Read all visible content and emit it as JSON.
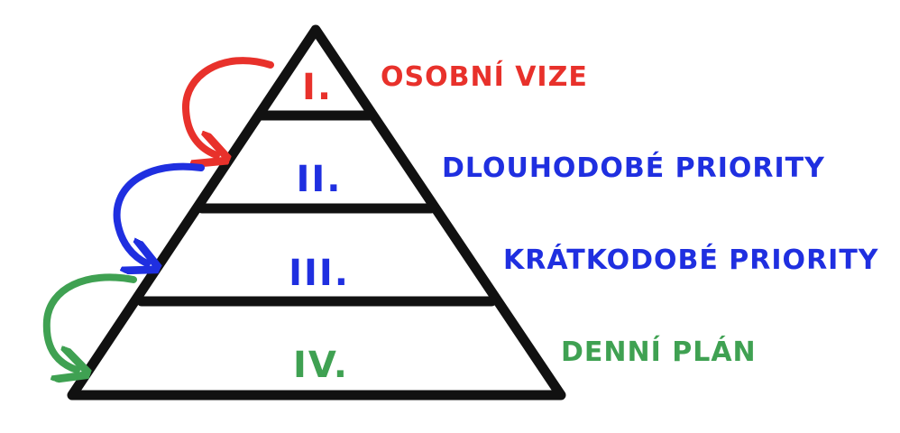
{
  "colors": {
    "outline": "#111111",
    "red": "#e8312b",
    "blue": "#1f2fe0",
    "green": "#3fa152"
  },
  "levels": [
    {
      "numeral": "I.",
      "label": "OSOBNÍ VIZE",
      "color": "#e8312b"
    },
    {
      "numeral": "II.",
      "label": "DLOUHODOBÉ PRIORITY",
      "color": "#1f2fe0"
    },
    {
      "numeral": "III.",
      "label": "KRÁTKODOBÉ PRIORITY",
      "color": "#1f2fe0"
    },
    {
      "numeral": "IV.",
      "label": "DENNÍ PLÁN",
      "color": "#3fa152"
    }
  ]
}
